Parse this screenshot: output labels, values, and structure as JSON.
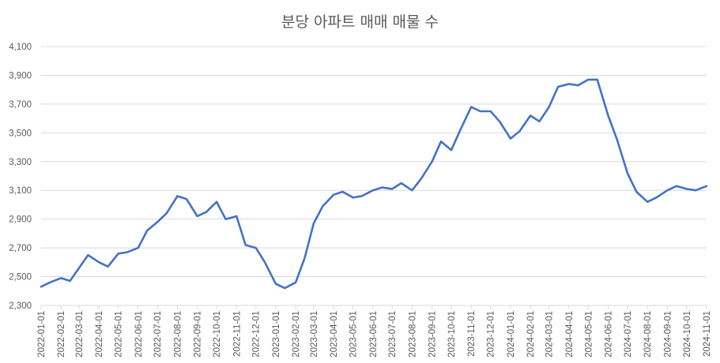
{
  "chart_data": {
    "type": "line",
    "title": "분당 아파트 매매 매물 수",
    "xlabel": "",
    "ylabel": "",
    "ylim": [
      2300,
      4100
    ],
    "grid": true,
    "line_color": "#4472C4",
    "yticks": [
      2300,
      2500,
      2700,
      2900,
      3100,
      3300,
      3500,
      3700,
      3900,
      4100
    ],
    "ytick_labels": [
      "2,300",
      "2,500",
      "2,700",
      "2,900",
      "3,100",
      "3,300",
      "3,500",
      "3,700",
      "3,900",
      "4,100"
    ],
    "xticks": [
      "2022-01-01",
      "2022-02-01",
      "2022-03-01",
      "2022-04-01",
      "2022-05-01",
      "2022-06-01",
      "2022-07-01",
      "2022-08-01",
      "2022-09-01",
      "2022-10-01",
      "2022-11-01",
      "2022-12-01",
      "2023-01-01",
      "2023-02-01",
      "2023-03-01",
      "2023-04-01",
      "2023-05-01",
      "2023-06-01",
      "2023-07-01",
      "2023-08-01",
      "2023-09-01",
      "2023-10-01",
      "2023-11-01",
      "2023-12-01",
      "2024-01-01",
      "2024-02-01",
      "2024-03-01",
      "2024-04-01",
      "2024-05-01",
      "2024-06-01",
      "2024-07-01",
      "2024-08-01",
      "2024-09-01",
      "2024-10-01",
      "2024-11-01"
    ],
    "series": [
      {
        "x": [
          "2022-01-01",
          "2022-01-15",
          "2022-02-01",
          "2022-02-15",
          "2022-03-01",
          "2022-03-15",
          "2022-04-01",
          "2022-04-15",
          "2022-05-01",
          "2022-05-15",
          "2022-06-01",
          "2022-06-15",
          "2022-07-01",
          "2022-07-15",
          "2022-08-01",
          "2022-08-15",
          "2022-09-01",
          "2022-09-15",
          "2022-10-01",
          "2022-10-15",
          "2022-11-01",
          "2022-11-15",
          "2022-12-01",
          "2022-12-15",
          "2023-01-01",
          "2023-01-15",
          "2023-02-01",
          "2023-02-15",
          "2023-03-01",
          "2023-03-15",
          "2023-04-01",
          "2023-04-15",
          "2023-05-01",
          "2023-05-15",
          "2023-06-01",
          "2023-06-15",
          "2023-07-01",
          "2023-07-15",
          "2023-08-01",
          "2023-08-15",
          "2023-09-01",
          "2023-09-15",
          "2023-10-01",
          "2023-10-15",
          "2023-11-01",
          "2023-11-15",
          "2023-12-01",
          "2023-12-15",
          "2024-01-01",
          "2024-01-15",
          "2024-02-01",
          "2024-02-15",
          "2024-03-01",
          "2024-03-15",
          "2024-04-01",
          "2024-04-15",
          "2024-05-01",
          "2024-05-15",
          "2024-06-01",
          "2024-06-15",
          "2024-07-01",
          "2024-07-15",
          "2024-08-01",
          "2024-08-15",
          "2024-09-01",
          "2024-09-15",
          "2024-10-01",
          "2024-10-15",
          "2024-11-01"
        ],
        "values": [
          2430,
          2460,
          2490,
          2470,
          2560,
          2650,
          2600,
          2570,
          2660,
          2670,
          2700,
          2820,
          2880,
          2940,
          3060,
          3040,
          2920,
          2950,
          3020,
          2900,
          2920,
          2720,
          2700,
          2600,
          2450,
          2420,
          2460,
          2630,
          2870,
          2990,
          3070,
          3090,
          3050,
          3060,
          3100,
          3120,
          3110,
          3150,
          3100,
          3180,
          3300,
          3440,
          3380,
          3520,
          3680,
          3650,
          3650,
          3580,
          3460,
          3510,
          3620,
          3580,
          3680,
          3820,
          3840,
          3830,
          3870,
          3870,
          3620,
          3450,
          3220,
          3090,
          3020,
          3050,
          3100,
          3130,
          3110,
          3100,
          3130
        ]
      }
    ]
  }
}
